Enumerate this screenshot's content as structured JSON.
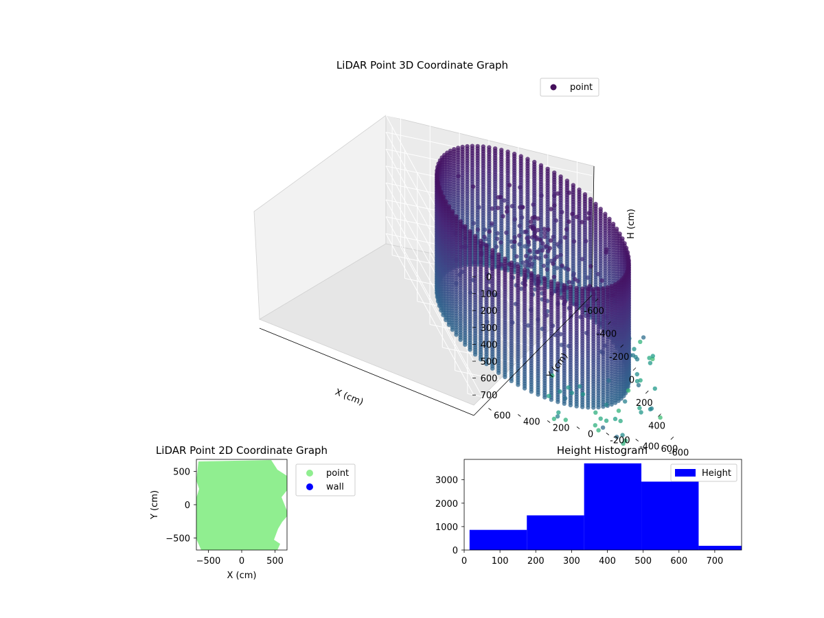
{
  "chart_data": [
    {
      "type": "scatter3d",
      "title": "LiDAR Point 3D Coordinate Graph",
      "xlabel": "X (cm)",
      "ylabel": "Y (cm)",
      "zlabel": "H (cm)",
      "xticks": [
        -600,
        -400,
        -200,
        0,
        200,
        400,
        600
      ],
      "yticks": [
        -600,
        -400,
        -200,
        0,
        200,
        400,
        600
      ],
      "zticks": [
        0,
        100,
        200,
        300,
        400,
        500,
        600,
        700
      ],
      "xlim": [
        -700,
        700
      ],
      "ylim": [
        -700,
        700
      ],
      "zlim": [
        760,
        0
      ],
      "zaxis_inverted": true,
      "colormap": "viridis",
      "legend": {
        "entries": [
          "point"
        ],
        "position": "upper-right"
      },
      "structure": "cylindrical wall of points, radius ~600 cm, height 0-700 cm, plus scattered interior and exterior points"
    },
    {
      "type": "scatter",
      "title": "LiDAR Point 2D Coordinate Graph",
      "xlabel": "X (cm)",
      "ylabel": "Y (cm)",
      "xticks": [
        -500,
        0,
        500
      ],
      "yticks": [
        500,
        0,
        -500
      ],
      "xlim": [
        -680,
        680
      ],
      "ylim": [
        -680,
        680
      ],
      "series": [
        {
          "name": "point",
          "color": "#90ee90"
        },
        {
          "name": "wall",
          "color": "#0000ff"
        }
      ],
      "legend": {
        "position": "outside-right"
      }
    },
    {
      "type": "histogram",
      "title": "Height Histogram",
      "xticks": [
        0,
        100,
        200,
        300,
        400,
        500,
        600,
        700
      ],
      "yticks": [
        0,
        1000,
        2000,
        3000
      ],
      "xlim": [
        0,
        775
      ],
      "ylim": [
        0,
        3870
      ],
      "bins": [
        {
          "start": 15,
          "end": 175,
          "count": 860
        },
        {
          "start": 175,
          "end": 335,
          "count": 1480
        },
        {
          "start": 335,
          "end": 495,
          "count": 3700
        },
        {
          "start": 495,
          "end": 655,
          "count": 2920
        },
        {
          "start": 655,
          "end": 775,
          "count": 180
        }
      ],
      "series": [
        {
          "name": "Height",
          "color": "#0000ff"
        }
      ],
      "legend": {
        "position": "upper-right"
      }
    }
  ]
}
